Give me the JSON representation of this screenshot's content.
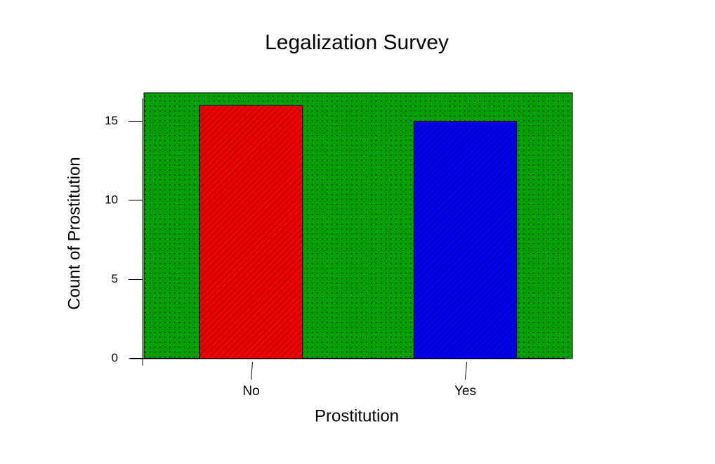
{
  "chart_data": {
    "type": "bar",
    "title": "Legalization Survey",
    "x_label": "Prostitution",
    "y_label": "Count of Prostitution",
    "categories": [
      "No",
      "Yes"
    ],
    "values": [
      16,
      15
    ],
    "colors": [
      "#ee0000",
      "#0000ee"
    ],
    "plot_background": "#00a000",
    "ylim": [
      0,
      16.8
    ],
    "yticks": [
      0,
      5,
      10,
      15
    ]
  }
}
